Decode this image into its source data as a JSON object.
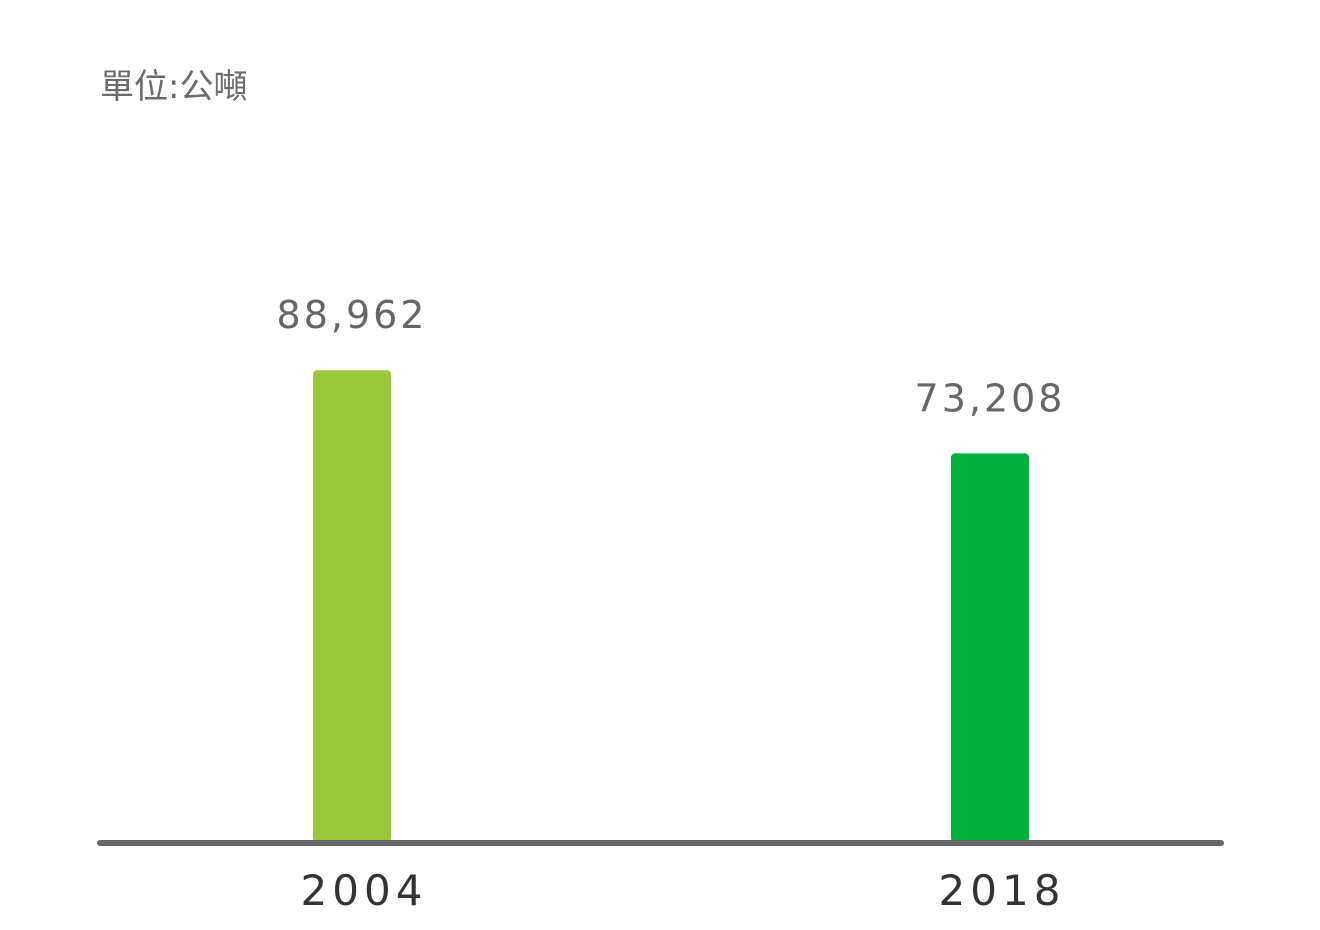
{
  "chart_data": {
    "type": "bar",
    "unit_label": "單位:公噸",
    "categories": [
      "2004",
      "2018"
    ],
    "values": [
      88962,
      73208
    ],
    "value_labels": [
      "88,962",
      "73,208"
    ],
    "colors": [
      "#9BC83B",
      "#00B140"
    ],
    "axis_color": "#666666",
    "ylim": [
      0,
      89000
    ],
    "title": "",
    "xlabel": "",
    "ylabel": "",
    "grid": false,
    "legend": "none"
  }
}
